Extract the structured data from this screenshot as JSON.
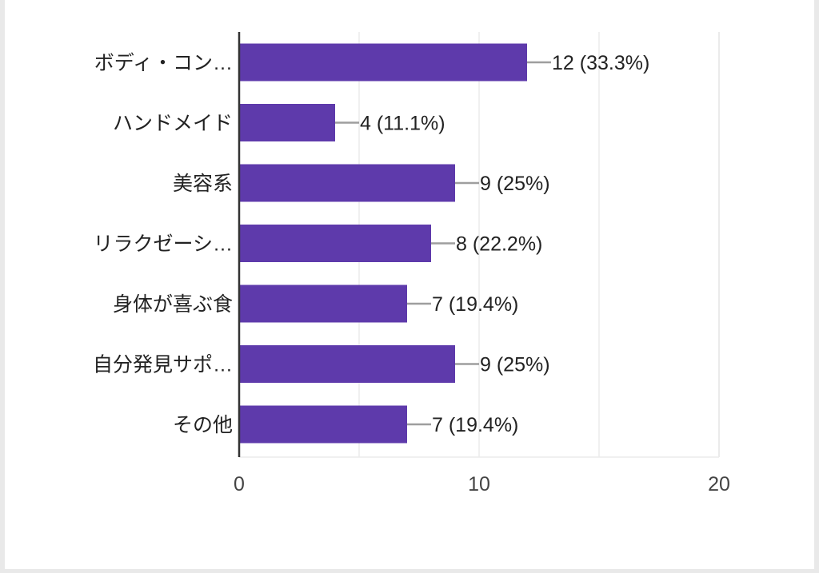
{
  "chart_data": {
    "type": "bar",
    "orientation": "horizontal",
    "categories": [
      "ボディ・コン…",
      "ハンドメイド",
      "美容系",
      "リラクゼーシ…",
      "身体が喜ぶ食",
      "自分発見サポ…",
      "その他"
    ],
    "values": [
      12,
      4,
      9,
      8,
      7,
      9,
      7
    ],
    "value_labels": [
      "12 (33.3%)",
      "4 (11.1%)",
      "9 (25%)",
      "8 (22.2%)",
      "7 (19.4%)",
      "9 (25%)",
      "7 (19.4%)"
    ],
    "xlim": [
      0,
      20
    ],
    "x_ticks": [
      "0",
      "10",
      "20"
    ],
    "grid": true,
    "colors": {
      "bar": "#5e3aab",
      "leader": "#9e9e9e",
      "grid": "#ebebeb",
      "axis": "#333333",
      "text": "#222222"
    }
  }
}
